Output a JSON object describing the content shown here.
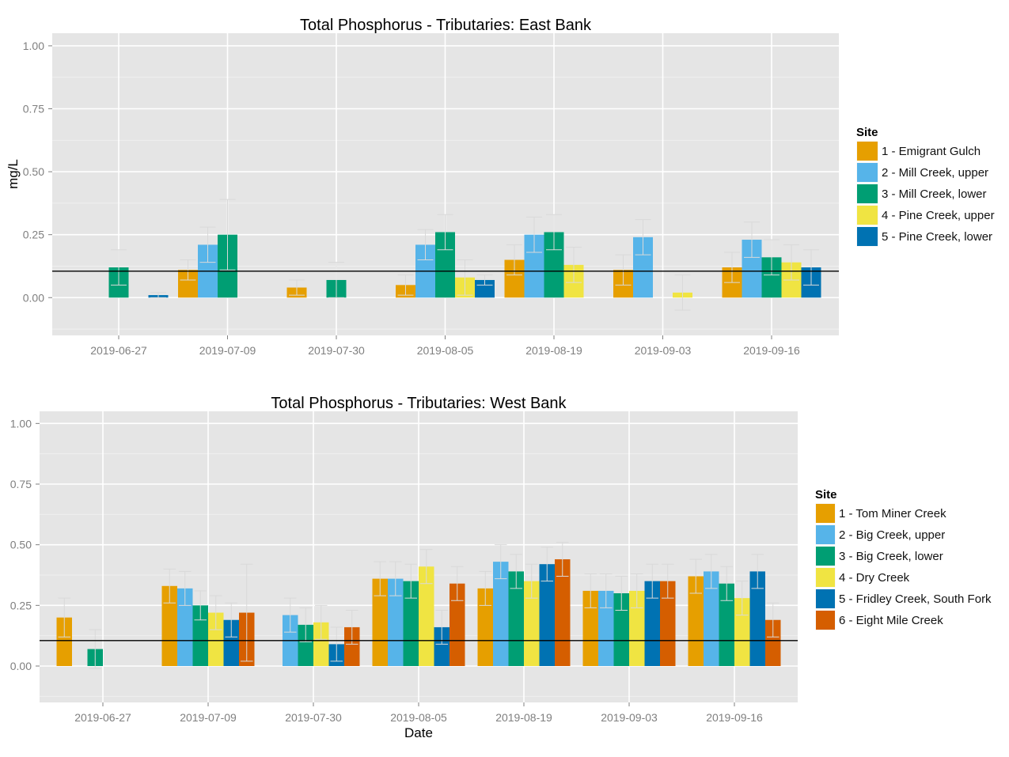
{
  "chart_data": [
    {
      "type": "bar",
      "title": "Total Phosphorus - Tributaries: East Bank",
      "xlabel": "",
      "ylabel": "mg/L",
      "ylim": [
        -0.15,
        1.05
      ],
      "yticks": [
        "0.00",
        "0.25",
        "0.50",
        "0.75",
        "1.00"
      ],
      "ytick_values": [
        0,
        0.25,
        0.5,
        0.75,
        1.0
      ],
      "reference_line": 0.105,
      "grid": true,
      "legend_position": "right",
      "legend_title": "Site",
      "categories": [
        "2019-06-27",
        "2019-07-09",
        "2019-07-30",
        "2019-08-05",
        "2019-08-19",
        "2019-09-03",
        "2019-09-16"
      ],
      "series": [
        {
          "name": "1 - Emigrant Gulch",
          "color": "#E69F00",
          "values": [
            null,
            0.11,
            0.04,
            0.05,
            0.15,
            0.11,
            0.12
          ],
          "err": [
            null,
            0.04,
            0.03,
            0.04,
            0.06,
            0.06,
            0.06
          ]
        },
        {
          "name": "2 - Mill Creek, upper",
          "color": "#56B4E9",
          "values": [
            null,
            0.21,
            null,
            0.21,
            0.25,
            0.24,
            0.23
          ],
          "err": [
            null,
            0.07,
            null,
            0.06,
            0.07,
            0.07,
            0.07
          ]
        },
        {
          "name": "3 - Mill Creek, lower",
          "color": "#009E73",
          "values": [
            0.12,
            0.25,
            0.07,
            0.26,
            0.26,
            null,
            0.16
          ],
          "err": [
            0.07,
            0.14,
            0.07,
            0.07,
            0.07,
            null,
            0.07
          ]
        },
        {
          "name": "4 - Pine Creek, upper",
          "color": "#F0E442",
          "values": [
            null,
            null,
            null,
            0.08,
            0.13,
            0.02,
            0.14
          ],
          "err": [
            null,
            null,
            null,
            0.07,
            0.07,
            0.07,
            0.07
          ]
        },
        {
          "name": "5 - Pine Creek, lower",
          "color": "#0072B2",
          "values": [
            0.01,
            null,
            null,
            0.07,
            null,
            null,
            0.12
          ],
          "err": [
            0.01,
            null,
            null,
            0.02,
            null,
            null,
            0.07
          ]
        }
      ]
    },
    {
      "type": "bar",
      "title": "Total Phosphorus - Tributaries: West Bank",
      "xlabel": "Date",
      "ylabel": "",
      "ylim": [
        -0.15,
        1.05
      ],
      "yticks": [
        "0.00",
        "0.25",
        "0.50",
        "0.75",
        "1.00"
      ],
      "ytick_values": [
        0,
        0.25,
        0.5,
        0.75,
        1.0
      ],
      "reference_line": 0.105,
      "grid": true,
      "legend_position": "right",
      "legend_title": "Site",
      "categories": [
        "2019-06-27",
        "2019-07-09",
        "2019-07-30",
        "2019-08-05",
        "2019-08-19",
        "2019-09-03",
        "2019-09-16"
      ],
      "series": [
        {
          "name": "1 - Tom Miner Creek",
          "color": "#E69F00",
          "values": [
            0.2,
            0.33,
            null,
            0.36,
            0.32,
            0.31,
            0.37
          ],
          "err": [
            0.08,
            0.07,
            null,
            0.07,
            0.07,
            0.07,
            0.07
          ]
        },
        {
          "name": "2 - Big Creek, upper",
          "color": "#56B4E9",
          "values": [
            null,
            0.32,
            0.21,
            0.36,
            0.43,
            0.31,
            0.39
          ],
          "err": [
            null,
            0.07,
            0.07,
            0.07,
            0.07,
            0.07,
            0.07
          ]
        },
        {
          "name": "3 - Big Creek, lower",
          "color": "#009E73",
          "values": [
            0.07,
            0.25,
            0.17,
            0.35,
            0.39,
            0.3,
            0.34
          ],
          "err": [
            0.08,
            0.06,
            0.07,
            0.07,
            0.07,
            0.07,
            0.07
          ]
        },
        {
          "name": "4 - Dry Creek",
          "color": "#F0E442",
          "values": [
            null,
            0.22,
            0.18,
            0.41,
            0.35,
            0.31,
            0.28
          ],
          "err": [
            null,
            0.07,
            0.07,
            0.07,
            0.07,
            0.07,
            0.07
          ]
        },
        {
          "name": "5 - Fridley Creek, South Fork",
          "color": "#0072B2",
          "values": [
            null,
            0.19,
            0.09,
            0.16,
            0.42,
            0.35,
            0.39
          ],
          "err": [
            null,
            0.07,
            0.07,
            0.07,
            0.07,
            0.07,
            0.07
          ]
        },
        {
          "name": "6 - Eight Mile Creek",
          "color": "#D55E00",
          "values": [
            null,
            0.22,
            0.16,
            0.34,
            0.44,
            0.35,
            0.19
          ],
          "err": [
            null,
            0.2,
            0.07,
            0.07,
            0.07,
            0.07,
            0.07
          ]
        }
      ]
    }
  ]
}
